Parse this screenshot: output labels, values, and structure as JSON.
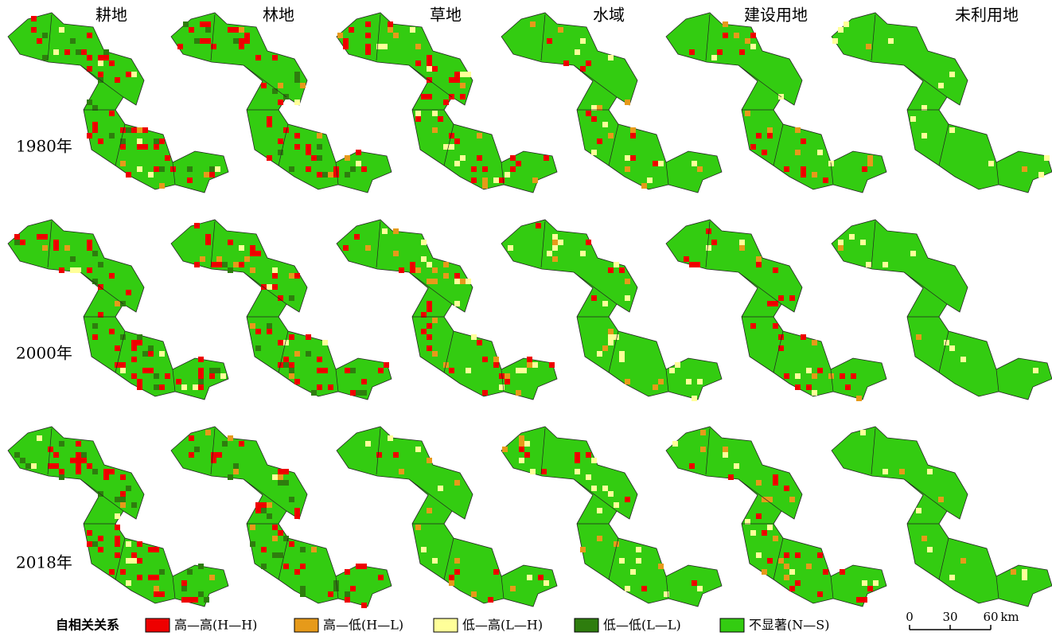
{
  "column_titles": [
    "耕地",
    "林地",
    "草地",
    "水域",
    "建设用地",
    "未利用地"
  ],
  "row_labels": [
    "1980年",
    "2000年",
    "2018年"
  ],
  "legend": {
    "title": "自相关关系",
    "items": [
      {
        "label": "高—高(H—H)",
        "color": "#ee0000"
      },
      {
        "label": "高—低(H—L)",
        "color": "#e69a1a"
      },
      {
        "label": "低—高(L—H)",
        "color": "#ffff99"
      },
      {
        "label": "低—低(L—L)",
        "color": "#2e7d0e"
      },
      {
        "label": "不显著(N—S)",
        "color": "#33cc11"
      }
    ]
  },
  "scale_bar": {
    "ticks": [
      0,
      30,
      60
    ],
    "unit": "km"
  }
}
